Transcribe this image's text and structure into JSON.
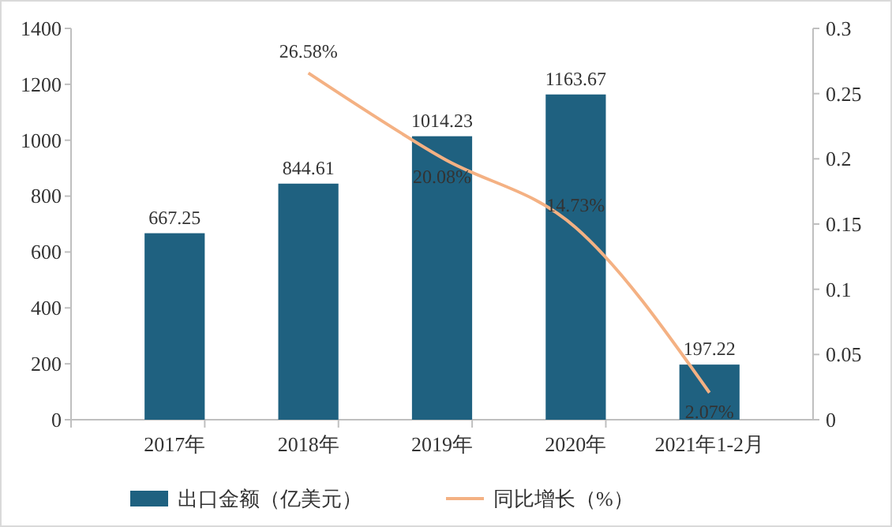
{
  "chart_data": {
    "type": "bar",
    "categories": [
      "2017年",
      "2018年",
      "2019年",
      "2020年",
      "2021年1-2月"
    ],
    "series": [
      {
        "name": "出口金额（亿美元）",
        "type": "bar",
        "color": "#1f6180",
        "values": [
          667.25,
          844.61,
          1014.23,
          1163.67,
          197.22
        ],
        "value_labels": [
          "667.25",
          "844.61",
          "1014.23",
          "1163.67",
          "197.22"
        ]
      },
      {
        "name": "同比增长（%）",
        "type": "line",
        "axis": "y2",
        "color": "#f4b183",
        "values": [
          null,
          0.2658,
          0.2008,
          0.1473,
          0.0207
        ],
        "value_labels": [
          null,
          "26.58%",
          "20.08%",
          "14.73%",
          "2.07%"
        ]
      }
    ],
    "ylim": [
      0,
      1400
    ],
    "yticks": [
      0,
      200,
      400,
      600,
      800,
      1000,
      1200,
      1400
    ],
    "y2lim": [
      0,
      0.3
    ],
    "y2ticks": [
      0,
      0.05,
      0.1,
      0.15,
      0.2,
      0.25,
      0.3
    ],
    "grid": false,
    "legend": "bottom",
    "marker": "none",
    "line_style": "solid"
  }
}
